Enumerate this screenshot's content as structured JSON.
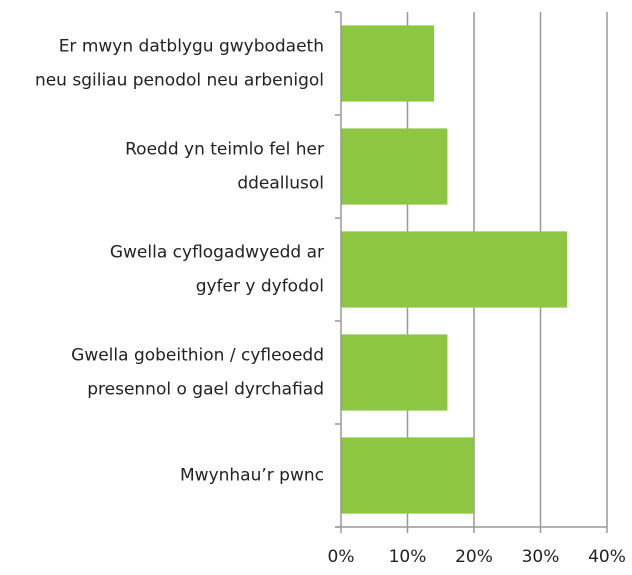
{
  "chart_data": {
    "type": "bar",
    "orientation": "horizontal",
    "categories": [
      [
        "Er mwyn datblygu gwybodaeth",
        "neu sgiliau penodol neu arbenigol"
      ],
      [
        "Roedd yn teimlo fel her",
        "ddeallusol"
      ],
      [
        "Gwella cyflogadwyedd ar",
        "gyfer y dyfodol"
      ],
      [
        "Gwella gobeithion / cyfleoedd",
        "presennol o gael dyrchafiad"
      ],
      [
        "Mwynhau’r pwnc"
      ]
    ],
    "values": [
      14,
      16,
      34,
      16,
      20
    ],
    "color": "#8dc641",
    "xlim": [
      0,
      40
    ],
    "xticks": [
      {
        "value": 0,
        "label": "0%"
      },
      {
        "value": 10,
        "label": "10%"
      },
      {
        "value": 20,
        "label": "20%"
      },
      {
        "value": 30,
        "label": "30%"
      },
      {
        "value": 40,
        "label": "40%"
      }
    ],
    "grid": true
  }
}
